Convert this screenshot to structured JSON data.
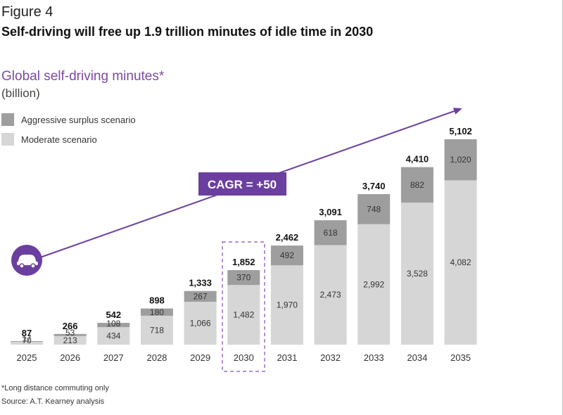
{
  "figure": {
    "label": "Figure 4",
    "title": "Self-driving will free up 1.9 trillion minutes of idle time in 2030"
  },
  "chart_data": {
    "type": "bar",
    "stacked": true,
    "title": "Global self-driving minutes*",
    "unit_label": "(billion)",
    "categories": [
      "2025",
      "2026",
      "2027",
      "2028",
      "2029",
      "2030",
      "2031",
      "2032",
      "2033",
      "2034",
      "2035"
    ],
    "series": [
      {
        "name": "Moderate scenario",
        "color": "#d6d6d6",
        "values": [
          70,
          213,
          434,
          718,
          1066,
          1482,
          1970,
          2473,
          2992,
          3528,
          4082
        ],
        "labels": [
          "70",
          "213",
          "434",
          "718",
          "1,066",
          "1,482",
          "1,970",
          "2,473",
          "2,992",
          "3,528",
          "4,082"
        ]
      },
      {
        "name": "Aggressive surplus scenario",
        "color": "#9e9e9e",
        "values": [
          17,
          53,
          108,
          180,
          267,
          370,
          492,
          618,
          748,
          882,
          1020
        ],
        "labels": [
          "17",
          "53",
          "108",
          "180",
          "267",
          "370",
          "492",
          "618",
          "748",
          "882",
          "1,020"
        ]
      }
    ],
    "totals": [
      87,
      266,
      542,
      898,
      1333,
      1852,
      2462,
      3091,
      3740,
      4410,
      5102
    ],
    "total_labels": [
      "87",
      "266",
      "542",
      "898",
      "1,333",
      "1,852",
      "2,462",
      "3,091",
      "3,740",
      "4,410",
      "5,102"
    ],
    "highlighted_category": "2030",
    "ylim": [
      0,
      5102
    ],
    "grid": false,
    "legend_position": "top-left",
    "annotation": "CAGR = +50",
    "accent_color": "#6b3fa0"
  },
  "footnotes": {
    "note": "*Long distance commuting only",
    "source": "Source: A.T. Kearney analysis"
  }
}
